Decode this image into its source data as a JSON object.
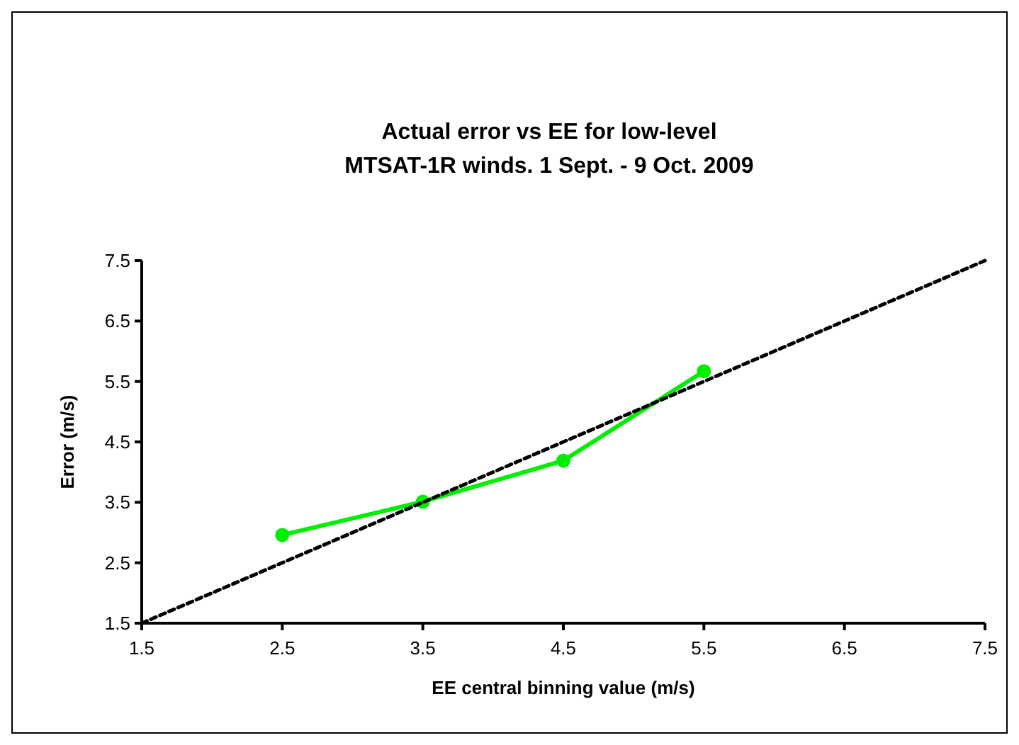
{
  "chart_data": {
    "type": "line",
    "title": "Actual error vs EE for low-level\nMTSAT-1R winds. 1 Sept. - 9 Oct. 2009",
    "xlabel": "EE central binning value (m/s)",
    "ylabel": "Error (m/s)",
    "xlim": [
      1.5,
      7.5
    ],
    "ylim": [
      1.5,
      7.5
    ],
    "xticks": [
      1.5,
      2.5,
      3.5,
      4.5,
      5.5,
      6.5,
      7.5
    ],
    "yticks": [
      1.5,
      2.5,
      3.5,
      4.5,
      5.5,
      6.5,
      7.5
    ],
    "grid": false,
    "series": [
      {
        "color": "#00ee00",
        "x": [
          2.5,
          3.5,
          4.5,
          5.5
        ],
        "values": [
          2.96,
          3.51,
          4.19,
          5.67
        ],
        "marker": "circle",
        "line_style": "solid"
      },
      {
        "color": "#000000",
        "x": [
          1.5,
          7.5
        ],
        "values": [
          1.5,
          7.5
        ],
        "marker": "none",
        "line_style": "dashed"
      }
    ]
  }
}
